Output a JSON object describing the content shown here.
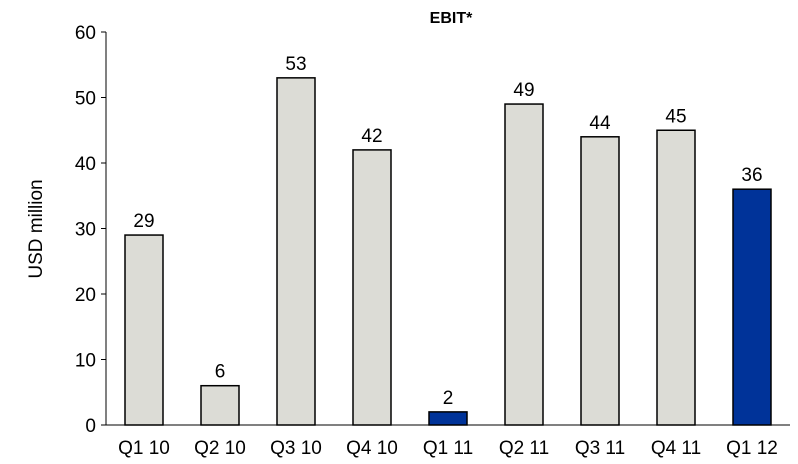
{
  "chart_data": {
    "type": "bar",
    "title": "EBIT*",
    "xlabel": "",
    "ylabel": "USD million",
    "ylim": [
      0,
      60
    ],
    "yticks": [
      0,
      10,
      20,
      30,
      40,
      50,
      60
    ],
    "grid": false,
    "legend": "none",
    "categories": [
      "Q1 10",
      "Q2 10",
      "Q3 10",
      "Q4 10",
      "Q1 11",
      "Q2 11",
      "Q3 11",
      "Q4 11",
      "Q1 12"
    ],
    "values": [
      29,
      6,
      53,
      42,
      2,
      49,
      44,
      45,
      36
    ],
    "data_labels": [
      "29",
      "6",
      "53",
      "42",
      "2",
      "49",
      "44",
      "45",
      "36"
    ],
    "highlighted": [
      false,
      false,
      false,
      false,
      true,
      false,
      false,
      false,
      true
    ],
    "colors": {
      "default_fill": "#dcdcd6",
      "highlight_fill": "#003399",
      "bar_stroke": "#000000",
      "axis": "#000000"
    }
  }
}
